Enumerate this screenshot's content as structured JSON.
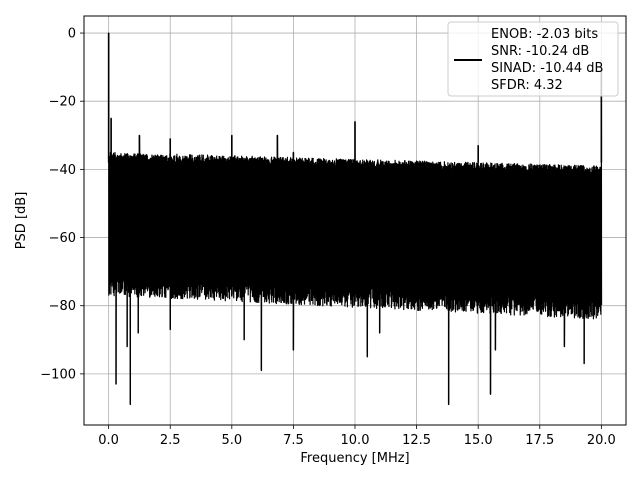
{
  "chart_data": {
    "type": "line",
    "xlabel": "Frequency [MHz]",
    "ylabel": "PSD [dB]",
    "xlim": [
      -1.0,
      21.0
    ],
    "ylim": [
      -115,
      5
    ],
    "xticks": [
      0.0,
      2.5,
      5.0,
      7.5,
      10.0,
      12.5,
      15.0,
      17.5,
      20.0
    ],
    "xtick_labels": [
      "0.0",
      "2.5",
      "5.0",
      "7.5",
      "10.0",
      "12.5",
      "15.0",
      "17.5",
      "20.0"
    ],
    "yticks": [
      0,
      -20,
      -40,
      -60,
      -80,
      -100
    ],
    "ytick_labels": [
      "0",
      "−20",
      "−40",
      "−60",
      "−80",
      "−100"
    ],
    "grid": true,
    "legend_position": "top-right",
    "series": [
      {
        "color": "#000000",
        "legend_lines": [
          "ENOB: -2.03 bits",
          "SNR: -10.24 dB",
          "SINAD: -10.44 dB",
          "SFDR: 4.32"
        ],
        "x_range": [
          0,
          20
        ],
        "noise_top_start": -35,
        "noise_top_end": -39,
        "noise_bottom_start": -77,
        "noise_bottom_end": -84,
        "spurs": [
          {
            "x": 0.0,
            "y": 0
          },
          {
            "x": 0.1,
            "y": -25
          },
          {
            "x": 1.25,
            "y": -30
          },
          {
            "x": 2.5,
            "y": -31
          },
          {
            "x": 5.0,
            "y": -30
          },
          {
            "x": 6.85,
            "y": -30
          },
          {
            "x": 7.5,
            "y": -35
          },
          {
            "x": 10.0,
            "y": -26
          },
          {
            "x": 15.0,
            "y": -33
          },
          {
            "x": 20.0,
            "y": -10
          }
        ],
        "dips": [
          {
            "x": 0.3,
            "y": -103
          },
          {
            "x": 0.75,
            "y": -92
          },
          {
            "x": 0.88,
            "y": -109
          },
          {
            "x": 1.2,
            "y": -88
          },
          {
            "x": 2.5,
            "y": -87
          },
          {
            "x": 5.5,
            "y": -90
          },
          {
            "x": 6.2,
            "y": -99
          },
          {
            "x": 7.5,
            "y": -93
          },
          {
            "x": 10.5,
            "y": -95
          },
          {
            "x": 11.0,
            "y": -88
          },
          {
            "x": 13.8,
            "y": -109
          },
          {
            "x": 15.5,
            "y": -106
          },
          {
            "x": 15.7,
            "y": -93
          },
          {
            "x": 18.5,
            "y": -92
          },
          {
            "x": 19.3,
            "y": -97
          }
        ]
      }
    ]
  }
}
